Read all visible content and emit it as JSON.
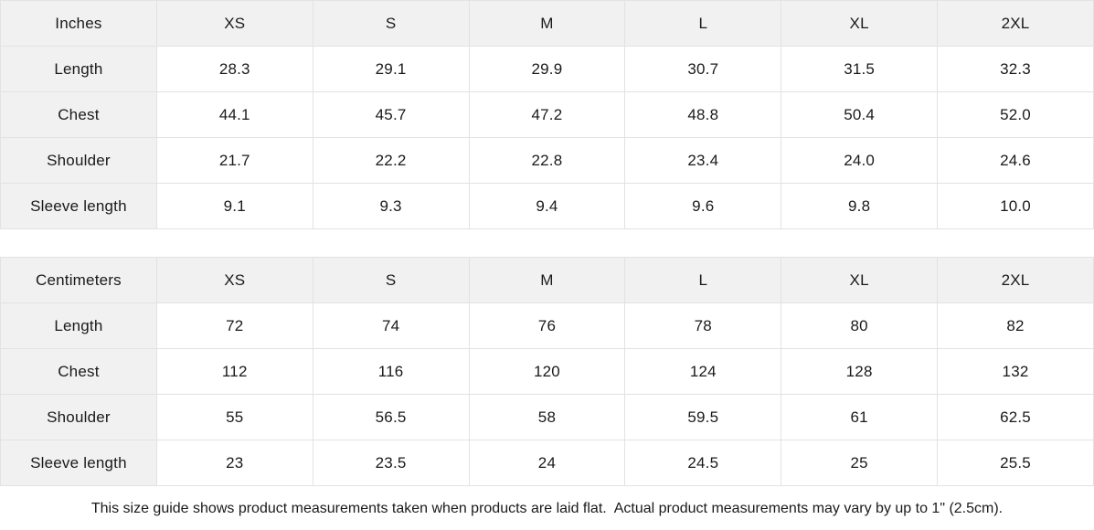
{
  "colors": {
    "header_bg": "#f1f1f1",
    "border": "#e2e2e2",
    "text": "#1a1a1a",
    "page_bg": "#ffffff"
  },
  "tables": [
    {
      "unit_label": "Inches",
      "columns": [
        "XS",
        "S",
        "M",
        "L",
        "XL",
        "2XL"
      ],
      "rows": [
        {
          "label": "Length",
          "values": [
            "28.3",
            "29.1",
            "29.9",
            "30.7",
            "31.5",
            "32.3"
          ]
        },
        {
          "label": "Chest",
          "values": [
            "44.1",
            "45.7",
            "47.2",
            "48.8",
            "50.4",
            "52.0"
          ]
        },
        {
          "label": "Shoulder",
          "values": [
            "21.7",
            "22.2",
            "22.8",
            "23.4",
            "24.0",
            "24.6"
          ]
        },
        {
          "label": "Sleeve length",
          "values": [
            "9.1",
            "9.3",
            "9.4",
            "9.6",
            "9.8",
            "10.0"
          ]
        }
      ]
    },
    {
      "unit_label": "Centimeters",
      "columns": [
        "XS",
        "S",
        "M",
        "L",
        "XL",
        "2XL"
      ],
      "rows": [
        {
          "label": "Length",
          "values": [
            "72",
            "74",
            "76",
            "78",
            "80",
            "82"
          ]
        },
        {
          "label": "Chest",
          "values": [
            "112",
            "116",
            "120",
            "124",
            "128",
            "132"
          ]
        },
        {
          "label": "Shoulder",
          "values": [
            "55",
            "56.5",
            "58",
            "59.5",
            "61",
            "62.5"
          ]
        },
        {
          "label": "Sleeve length",
          "values": [
            "23",
            "23.5",
            "24",
            "24.5",
            "25",
            "25.5"
          ]
        }
      ]
    }
  ],
  "footer": {
    "note": "This size guide shows product measurements taken when products are laid flat.  Actual product measurements may vary by up to 1\" (2.5cm)."
  }
}
